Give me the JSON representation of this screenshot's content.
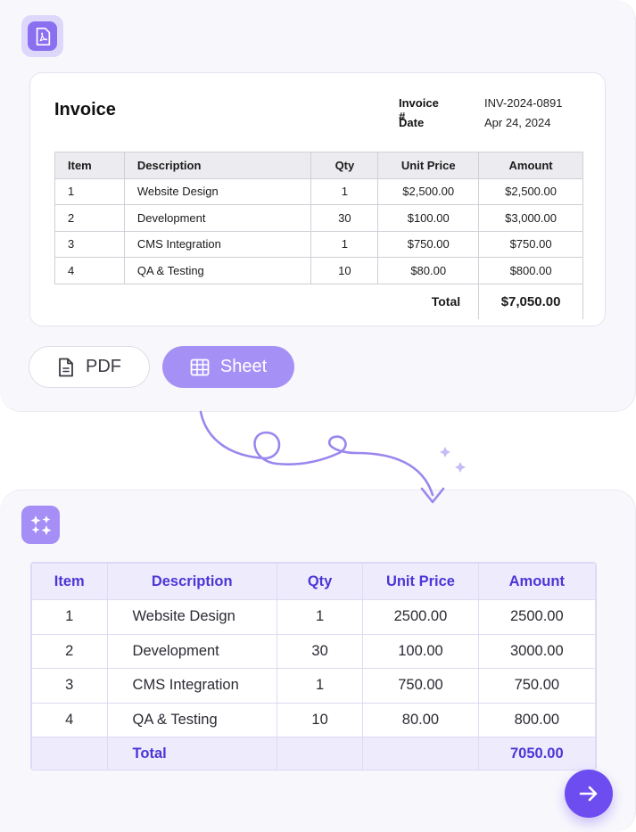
{
  "invoice": {
    "title": "Invoice",
    "invoice_number_label": "Invoice #",
    "invoice_number": "INV-2024-0891",
    "date_label": "Date",
    "date": "Apr 24, 2024",
    "columns": [
      "Item",
      "Description",
      "Qty",
      "Unit Price",
      "Amount"
    ],
    "rows": [
      [
        "1",
        "Website Design",
        "1",
        "$2,500.00",
        "$2,500.00"
      ],
      [
        "2",
        "Development",
        "30",
        "$100.00",
        "$3,000.00"
      ],
      [
        "3",
        "CMS Integration",
        "1",
        "$750.00",
        "$750.00"
      ],
      [
        "4",
        "QA & Testing",
        "10",
        "$80.00",
        "$800.00"
      ]
    ],
    "total_label": "Total",
    "total": "$7,050.00"
  },
  "format_buttons": {
    "pdf_label": "PDF",
    "sheet_label": "Sheet"
  },
  "sheet": {
    "columns": [
      "Item",
      "Description",
      "Qty",
      "Unit Price",
      "Amount"
    ],
    "rows": [
      [
        "1",
        "Website Design",
        "1",
        "2500.00",
        "2500.00"
      ],
      [
        "2",
        "Development",
        "30",
        "100.00",
        "3000.00"
      ],
      [
        "3",
        "CMS Integration",
        "1",
        "750.00",
        "750.00"
      ],
      [
        "4",
        "QA & Testing",
        "10",
        "80.00",
        "800.00"
      ]
    ],
    "total_label": "Total",
    "total": "7050.00"
  },
  "colors": {
    "accent": "#6d4cf0",
    "accent_soft": "#a590f6",
    "header_text": "#4b36d6",
    "header_bg": "#eeebfd"
  },
  "icons": {
    "source_app": "pdf-document-icon",
    "ai_app": "sparkle-icon",
    "pdf_button": "file-icon",
    "sheet_button": "table-grid-icon",
    "next": "arrow-right-icon"
  }
}
